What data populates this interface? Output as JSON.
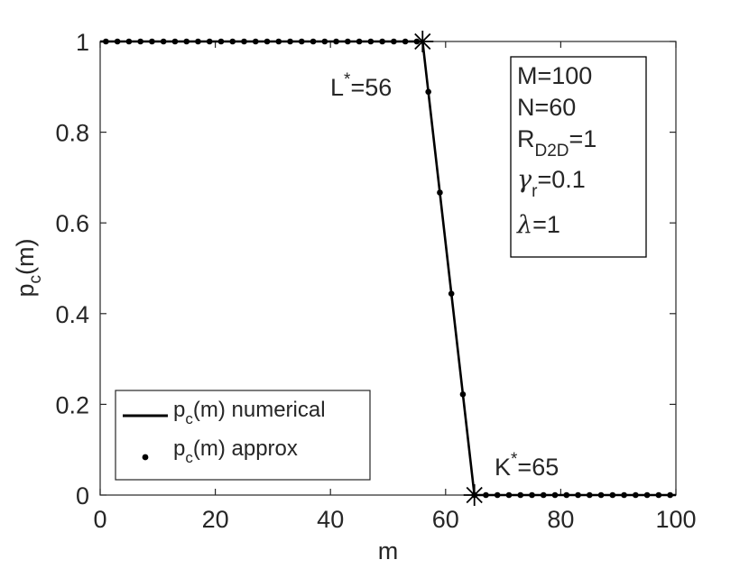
{
  "chart_data": {
    "type": "line",
    "xlabel": "m",
    "ylabel": {
      "base": "p",
      "sub": "c",
      "tail": "(m)"
    },
    "xlim": [
      0,
      100
    ],
    "ylim": [
      0,
      1
    ],
    "xticks": [
      0,
      20,
      40,
      60,
      80,
      100
    ],
    "xtick_labels": [
      "0",
      "20",
      "40",
      "60",
      "80",
      "100"
    ],
    "yticks": [
      0,
      0.2,
      0.4,
      0.6,
      0.8,
      1
    ],
    "ytick_labels": [
      "0",
      "0.2",
      "0.4",
      "0.6",
      "0.8",
      "1"
    ],
    "grid": false,
    "legend_position": "bottom-left",
    "series": [
      {
        "name": "p_c(m) numerical",
        "label": {
          "base": "p",
          "sub": "c",
          "tail": "(m) numerical"
        },
        "style": "line",
        "color": "#000000",
        "x": [
          0,
          56,
          65,
          100
        ],
        "y": [
          1,
          1,
          0,
          0
        ]
      },
      {
        "name": "p_c(m) approx",
        "label": {
          "base": "p",
          "sub": "c",
          "tail": "(m) approx"
        },
        "style": "markers",
        "color": "#000000",
        "x": [
          1,
          3,
          5,
          7,
          9,
          11,
          13,
          15,
          17,
          19,
          21,
          23,
          25,
          27,
          29,
          31,
          33,
          35,
          37,
          39,
          41,
          43,
          45,
          47,
          49,
          51,
          53,
          55,
          57,
          59,
          61,
          63,
          65,
          67,
          69,
          71,
          73,
          75,
          77,
          79,
          81,
          83,
          85,
          87,
          89,
          91,
          93,
          95,
          97,
          99
        ],
        "y": [
          1,
          1,
          1,
          1,
          1,
          1,
          1,
          1,
          1,
          1,
          1,
          1,
          1,
          1,
          1,
          1,
          1,
          1,
          1,
          1,
          1,
          1,
          1,
          1,
          1,
          1,
          1,
          1,
          0.889,
          0.667,
          0.444,
          0.222,
          0,
          0,
          0,
          0,
          0,
          0,
          0,
          0,
          0,
          0,
          0,
          0,
          0,
          0,
          0,
          0,
          0,
          0
        ]
      }
    ],
    "star_points": [
      {
        "x": 56,
        "y": 1
      },
      {
        "x": 65,
        "y": 0
      }
    ],
    "annotations": [
      {
        "base": "L",
        "sup": "*",
        "tail": "=56"
      },
      {
        "base": "K",
        "sup": "*",
        "tail": "=65"
      }
    ],
    "param_box": [
      {
        "base": "M",
        "sub": "",
        "tail": "=100"
      },
      {
        "base": "N",
        "sub": "",
        "tail": "=60"
      },
      {
        "base": "R",
        "sub": "D2D",
        "tail": "=1"
      },
      {
        "base": "γ",
        "sub": "r",
        "tail": "=0.1"
      },
      {
        "base": "λ",
        "sub": "",
        "tail": "=1"
      }
    ]
  }
}
